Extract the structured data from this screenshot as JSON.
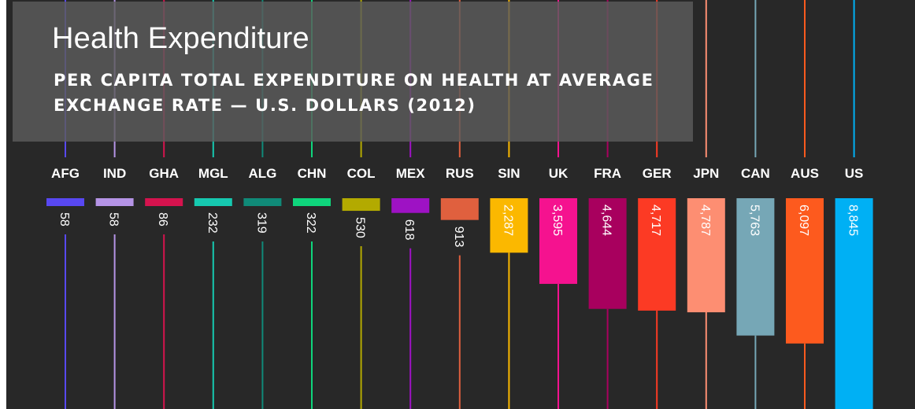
{
  "title": "Health Expenditure",
  "subtitle": "PER CAPITA TOTAL EXPENDITURE ON HEALTH AT AVERAGE EXCHANGE RATE — U.S. DOLLARS (2012)",
  "chart_data": {
    "type": "bar",
    "title": "Health Expenditure",
    "subtitle": "PER CAPITA TOTAL EXPENDITURE ON HEALTH AT AVERAGE EXCHANGE RATE — U.S. DOLLARS (2012)",
    "categories": [
      "AFG",
      "IND",
      "GHA",
      "MGL",
      "ALG",
      "CHN",
      "COL",
      "MEX",
      "RUS",
      "SIN",
      "UK",
      "FRA",
      "GER",
      "JPN",
      "CAN",
      "AUS",
      "US"
    ],
    "values": [
      58,
      58,
      86,
      232,
      319,
      322,
      530,
      618,
      913,
      2287,
      3595,
      4644,
      4717,
      4787,
      5763,
      6097,
      8845
    ],
    "value_labels": [
      "58",
      "58",
      "86",
      "232",
      "319",
      "322",
      "530",
      "618",
      "913",
      "2,287",
      "3,595",
      "4,644",
      "4,717",
      "4,787",
      "5,763",
      "6,097",
      "8,845"
    ],
    "colors": [
      "#5848f2",
      "#b594e6",
      "#d5134e",
      "#16c9b0",
      "#108a78",
      "#0fd57c",
      "#b3aa00",
      "#9e12c4",
      "#e0603e",
      "#fbb800",
      "#f5128f",
      "#a8005e",
      "#fc3a24",
      "#fd8e72",
      "#76a7b6",
      "#fd5a1e",
      "#00b0f4"
    ],
    "orientation": "vertical-downward",
    "xlabel": "",
    "ylabel": "",
    "grid": false,
    "legend": "none"
  }
}
